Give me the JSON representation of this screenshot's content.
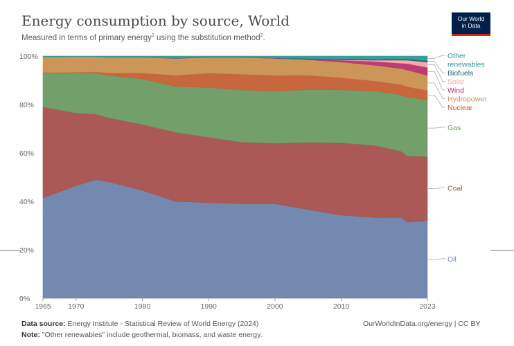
{
  "header": {
    "title": "Energy consumption by source, World",
    "subtitle_pre": "Measured in terms of primary energy",
    "subtitle_sup1": "1",
    "subtitle_mid": " using the substitution method",
    "subtitle_sup2": "2",
    "subtitle_end": ".",
    "logo_line1": "Our World",
    "logo_line2": "in Data"
  },
  "footer": {
    "source_label": "Data source:",
    "source_text": " Energy Institute - Statistical Review of World Energy (2024)",
    "note_label": "Note:",
    "note_text": " \"Other renewables\" include geothermal, biomass, and waste energy.",
    "credit": "OurWorldInData.org/energy | CC BY"
  },
  "chart_data": {
    "type": "area",
    "stacked": "percent",
    "x": [
      1965,
      1970,
      1973,
      1975,
      1980,
      1985,
      1990,
      1995,
      2000,
      2005,
      2010,
      2015,
      2019,
      2020,
      2023
    ],
    "xticks": [
      "1965",
      "1970",
      "1980",
      "1990",
      "2000",
      "2010",
      "2023"
    ],
    "yticks": [
      "0%",
      "20%",
      "40%",
      "60%",
      "80%",
      "100%"
    ],
    "ylim": [
      0,
      100
    ],
    "grid": "horizontal dashed",
    "legend": "right, labels at series ends",
    "series": [
      {
        "name": "Oil",
        "color": "#6d83ab",
        "values": [
          41.5,
          46.5,
          49,
          48,
          45,
          40,
          39.5,
          39,
          39,
          37,
          34.5,
          33.5,
          33,
          31,
          32
        ]
      },
      {
        "name": "Coal",
        "color": "#a6504e",
        "values": [
          37.5,
          30,
          27,
          26.5,
          27.5,
          28.5,
          27,
          25.5,
          25,
          28,
          30,
          30,
          27,
          27,
          26.5
        ]
      },
      {
        "name": "Gas",
        "color": "#6c9a62",
        "values": [
          14,
          16.5,
          17,
          17.5,
          19,
          19,
          20.5,
          21.5,
          21.5,
          22,
          22,
          22.5,
          23,
          24,
          23.5
        ]
      },
      {
        "name": "Nuclear",
        "color": "#c55e33",
        "values": [
          0.2,
          0.3,
          0.5,
          1,
          2.5,
          4.5,
          6,
          6.5,
          6.5,
          6,
          5,
          4.2,
          4.2,
          4.2,
          3.8
        ]
      },
      {
        "name": "Hydropower",
        "color": "#c99050",
        "values": [
          6.5,
          6.5,
          6.3,
          6.5,
          6.5,
          7,
          6.5,
          7,
          7,
          6.5,
          6.5,
          6.5,
          6.5,
          6.8,
          6.2
        ]
      },
      {
        "name": "Wind",
        "color": "#b8326e",
        "values": [
          0,
          0,
          0,
          0,
          0,
          0,
          0,
          0,
          0.1,
          0.3,
          0.8,
          1.6,
          2.2,
          2.6,
          3.3
        ]
      },
      {
        "name": "Solar",
        "color": "#f4a4a4",
        "values": [
          0,
          0,
          0,
          0,
          0,
          0,
          0,
          0,
          0,
          0,
          0.1,
          0.5,
          1.2,
          1.4,
          2.2
        ]
      },
      {
        "name": "Biofuels",
        "color": "#1f5f73",
        "values": [
          0,
          0,
          0,
          0,
          0,
          0.1,
          0.1,
          0.1,
          0.1,
          0.2,
          0.4,
          0.4,
          0.5,
          0.5,
          0.6
        ]
      },
      {
        "name": "Other renewables",
        "color": "#2f9a97",
        "values": [
          0.3,
          0.2,
          0.2,
          0.5,
          0.5,
          0.9,
          0.4,
          0.4,
          0.8,
          1.0,
          1.2,
          1.3,
          1.2,
          1.2,
          1.9
        ]
      }
    ]
  }
}
